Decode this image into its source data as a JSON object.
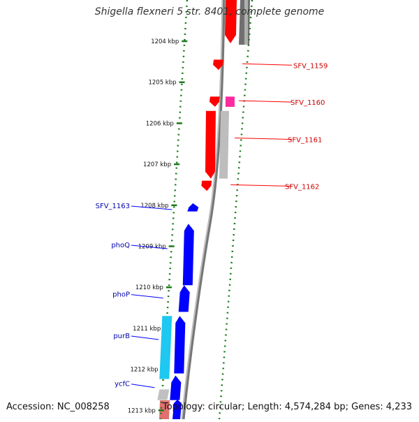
{
  "title": "Shigella flexneri 5 str. 8401, complete genome",
  "footer": {
    "accession": "Accession: NC_008258",
    "summary": "Topology: circular; Length: 4,574,284 bp; Genes: 4,233"
  },
  "colors": {
    "backbone": "#808080",
    "forward_gene": "#ff0000",
    "reverse_gene": "#0000ff",
    "forward_label": "#cc0000",
    "reverse_label": "#0000aa",
    "tick": "#1a7a1a"
  },
  "scale": {
    "unit": "kbp",
    "ticks": [
      {
        "kbp": 1204,
        "label": "1204 kbp"
      },
      {
        "kbp": 1205,
        "label": "1205 kbp"
      },
      {
        "kbp": 1206,
        "label": "1206 kbp"
      },
      {
        "kbp": 1207,
        "label": "1207 kbp"
      },
      {
        "kbp": 1208,
        "label": "1208 kbp"
      },
      {
        "kbp": 1209,
        "label": "1209 kbp"
      },
      {
        "kbp": 1210,
        "label": "1210 kbp"
      },
      {
        "kbp": 1211,
        "label": "1211 kbp"
      },
      {
        "kbp": 1212,
        "label": "1212 kbp"
      },
      {
        "kbp": 1213,
        "label": "1213 kbp"
      }
    ]
  },
  "forward_genes": [
    {
      "name": "SFV_1159",
      "start_kbp": 1204.45,
      "end_kbp": 1204.7
    },
    {
      "name": "SFV_1160",
      "start_kbp": 1205.35,
      "end_kbp": 1205.6
    },
    {
      "name": "SFV_1161",
      "start_kbp": 1205.7,
      "end_kbp": 1207.35
    },
    {
      "name": "SFV_1162",
      "start_kbp": 1207.4,
      "end_kbp": 1207.65
    }
  ],
  "reverse_genes": [
    {
      "name": "SFV_1163",
      "start_kbp": 1207.95,
      "end_kbp": 1208.15
    },
    {
      "name": "phoQ",
      "start_kbp": 1208.45,
      "end_kbp": 1209.95
    },
    {
      "name": "phoP",
      "start_kbp": 1209.95,
      "end_kbp": 1210.6
    },
    {
      "name": "purB",
      "start_kbp": 1210.7,
      "end_kbp": 1212.1
    },
    {
      "name": "ycfC",
      "start_kbp": 1212.15,
      "end_kbp": 1212.75
    }
  ]
}
